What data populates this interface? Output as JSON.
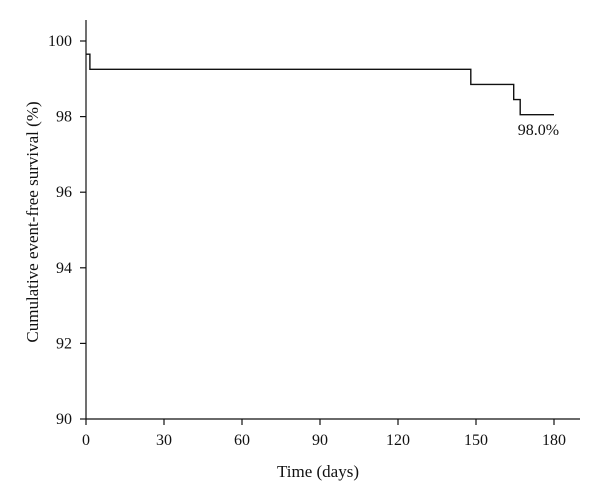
{
  "chart_data": {
    "type": "line",
    "title": "",
    "xlabel": "Time (days)",
    "ylabel": "Cumulative event-free survival (%)",
    "xlim": [
      0,
      180
    ],
    "ylim": [
      90,
      100.5
    ],
    "x_ticks": [
      0,
      30,
      60,
      90,
      120,
      150,
      180
    ],
    "y_ticks": [
      90,
      92,
      94,
      96,
      98,
      100
    ],
    "grid": false,
    "legend": "none",
    "series": [
      {
        "step": "post",
        "points": [
          {
            "x": 0,
            "y": 99.65
          },
          {
            "x": 1.5,
            "y": 99.65
          },
          {
            "x": 1.5,
            "y": 99.25
          },
          {
            "x": 148,
            "y": 99.25
          },
          {
            "x": 148,
            "y": 98.85
          },
          {
            "x": 164.5,
            "y": 98.85
          },
          {
            "x": 164.5,
            "y": 98.45
          },
          {
            "x": 167,
            "y": 98.45
          },
          {
            "x": 167,
            "y": 98.05
          },
          {
            "x": 180,
            "y": 98.05
          }
        ]
      }
    ],
    "annotations": [
      {
        "text": "98.0%",
        "x": 174,
        "y": 97.65
      }
    ]
  }
}
